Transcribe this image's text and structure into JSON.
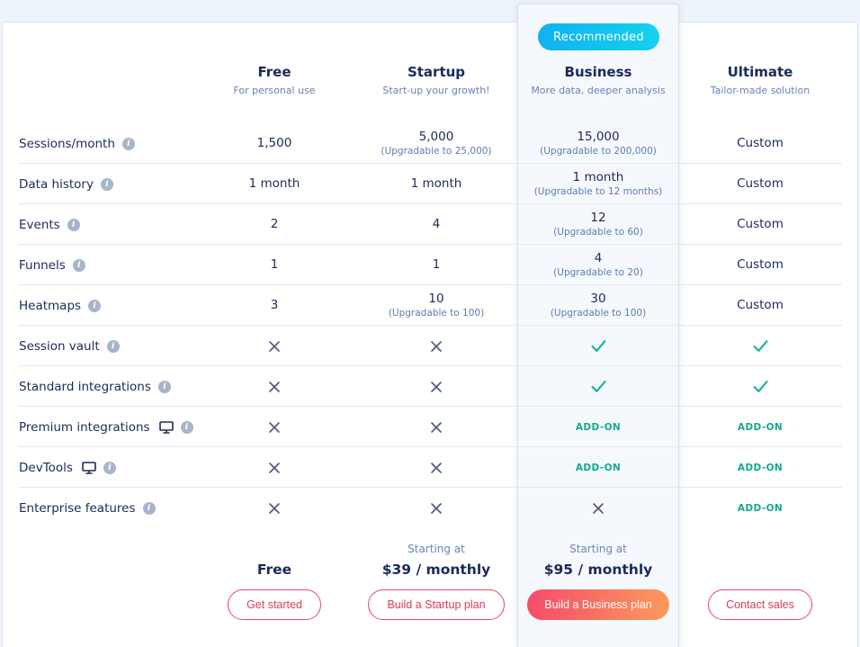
{
  "badge": "Recommended",
  "plans": [
    {
      "name": "Free",
      "tagline": "For personal use",
      "price_label": "",
      "price": "Free",
      "button": "Get started"
    },
    {
      "name": "Startup",
      "tagline": "Start-up your growth!",
      "price_label": "Starting at",
      "price": "$39 / monthly",
      "button": "Build a Startup plan"
    },
    {
      "name": "Business",
      "tagline": "More data, deeper analysis",
      "price_label": "Starting at",
      "price": "$95 / monthly",
      "button": "Build a Business plan"
    },
    {
      "name": "Ultimate",
      "tagline": "Tailor-made solution",
      "price_label": "",
      "price": "",
      "button": "Contact sales"
    }
  ],
  "features": [
    {
      "label": "Sessions/month",
      "monitor": false,
      "cells": [
        {
          "value": "1,500"
        },
        {
          "value": "5,000",
          "sub": "(Upgradable to 25,000)"
        },
        {
          "value": "15,000",
          "sub": "(Upgradable to 200,000)"
        },
        {
          "value": "Custom"
        }
      ]
    },
    {
      "label": "Data history",
      "monitor": false,
      "cells": [
        {
          "value": "1 month"
        },
        {
          "value": "1 month"
        },
        {
          "value": "1 month",
          "sub": "(Upgradable to 12 months)"
        },
        {
          "value": "Custom"
        }
      ]
    },
    {
      "label": "Events",
      "monitor": false,
      "cells": [
        {
          "value": "2"
        },
        {
          "value": "4"
        },
        {
          "value": "12",
          "sub": "(Upgradable to 60)"
        },
        {
          "value": "Custom"
        }
      ]
    },
    {
      "label": "Funnels",
      "monitor": false,
      "cells": [
        {
          "value": "1"
        },
        {
          "value": "1"
        },
        {
          "value": "4",
          "sub": "(Upgradable to 20)"
        },
        {
          "value": "Custom"
        }
      ]
    },
    {
      "label": "Heatmaps",
      "monitor": false,
      "cells": [
        {
          "value": "3"
        },
        {
          "value": "10",
          "sub": "(Upgradable to 100)"
        },
        {
          "value": "30",
          "sub": "(Upgradable to 100)"
        },
        {
          "value": "Custom"
        }
      ]
    },
    {
      "label": "Session vault",
      "monitor": false,
      "cells": [
        {
          "icon": "x"
        },
        {
          "icon": "x"
        },
        {
          "icon": "check"
        },
        {
          "icon": "check"
        }
      ]
    },
    {
      "label": "Standard integrations",
      "monitor": false,
      "cells": [
        {
          "icon": "x"
        },
        {
          "icon": "x"
        },
        {
          "icon": "check"
        },
        {
          "icon": "check"
        }
      ]
    },
    {
      "label": "Premium integrations",
      "monitor": true,
      "cells": [
        {
          "icon": "x"
        },
        {
          "icon": "x"
        },
        {
          "addon": "ADD-ON"
        },
        {
          "addon": "ADD-ON"
        }
      ]
    },
    {
      "label": "DevTools",
      "monitor": true,
      "cells": [
        {
          "icon": "x"
        },
        {
          "icon": "x"
        },
        {
          "addon": "ADD-ON"
        },
        {
          "addon": "ADD-ON"
        }
      ]
    },
    {
      "label": "Enterprise features",
      "monitor": false,
      "cells": [
        {
          "icon": "x"
        },
        {
          "icon": "x"
        },
        {
          "icon": "x"
        },
        {
          "addon": "ADD-ON"
        }
      ]
    }
  ],
  "icons": {
    "info": "info-icon",
    "monitor": "desktop-monitor-icon",
    "x": "x-icon",
    "check": "check-icon"
  },
  "colors": {
    "navy": "#1b2a58",
    "accent_teal": "#13a894",
    "badge": "#0fb1f0",
    "cta": "#e84663"
  }
}
